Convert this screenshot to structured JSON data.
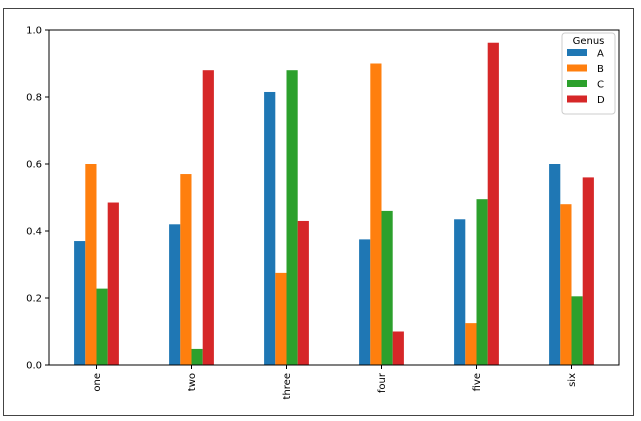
{
  "chart_data": {
    "type": "bar",
    "categories": [
      "one",
      "two",
      "three",
      "four",
      "five",
      "six"
    ],
    "series": [
      {
        "name": "A",
        "color": "#1f77b4",
        "values": [
          0.37,
          0.42,
          0.815,
          0.375,
          0.435,
          0.6
        ]
      },
      {
        "name": "B",
        "color": "#ff7f0e",
        "values": [
          0.6,
          0.57,
          0.275,
          0.9,
          0.125,
          0.48
        ]
      },
      {
        "name": "C",
        "color": "#2ca02c",
        "values": [
          0.228,
          0.048,
          0.88,
          0.46,
          0.495,
          0.205
        ]
      },
      {
        "name": "D",
        "color": "#d62728",
        "values": [
          0.485,
          0.88,
          0.43,
          0.1,
          0.962,
          0.56
        ]
      }
    ],
    "title": "",
    "xlabel": "",
    "ylabel": "",
    "ylim": [
      0,
      1.0
    ],
    "yticks": [
      "0.0",
      "0.2",
      "0.4",
      "0.6",
      "0.8",
      "1.0"
    ],
    "grid": false,
    "legend": {
      "title": "Genus",
      "placement": "top-right"
    }
  }
}
